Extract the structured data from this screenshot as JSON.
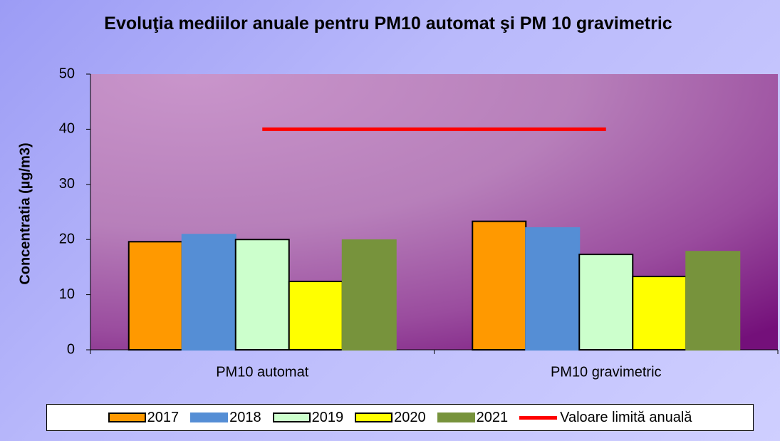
{
  "chart_data": {
    "type": "bar",
    "title": "Evoluţia mediilor anuale pentru PM10 automat şi PM 10 gravimetric",
    "y_label": "Concentratia (µg/m3)",
    "categories": [
      "PM10 automat",
      "PM10 gravimetric"
    ],
    "series": [
      {
        "name": "2017",
        "color": "#ff9900",
        "edgecolor": "#000000",
        "values": [
          19.6,
          23.3
        ]
      },
      {
        "name": "2018",
        "color": "#558ed5",
        "edgecolor": "#558ed5",
        "values": [
          20.9,
          22.1
        ]
      },
      {
        "name": "2019",
        "color": "#ccffcc",
        "edgecolor": "#000000",
        "values": [
          20.0,
          17.3
        ]
      },
      {
        "name": "2020",
        "color": "#ffff00",
        "edgecolor": "#000000",
        "values": [
          12.4,
          13.3
        ]
      },
      {
        "name": "2021",
        "color": "#77933c",
        "edgecolor": "#77933c",
        "values": [
          19.9,
          17.8
        ]
      },
      {
        "name": "Valoare limită anuală",
        "type": "line",
        "color": "#ff0000",
        "values": [
          40,
          40
        ]
      }
    ],
    "ylim": [
      0,
      50
    ],
    "yticks": [
      0,
      10,
      20,
      30,
      40,
      50
    ],
    "legend": "bottom"
  }
}
